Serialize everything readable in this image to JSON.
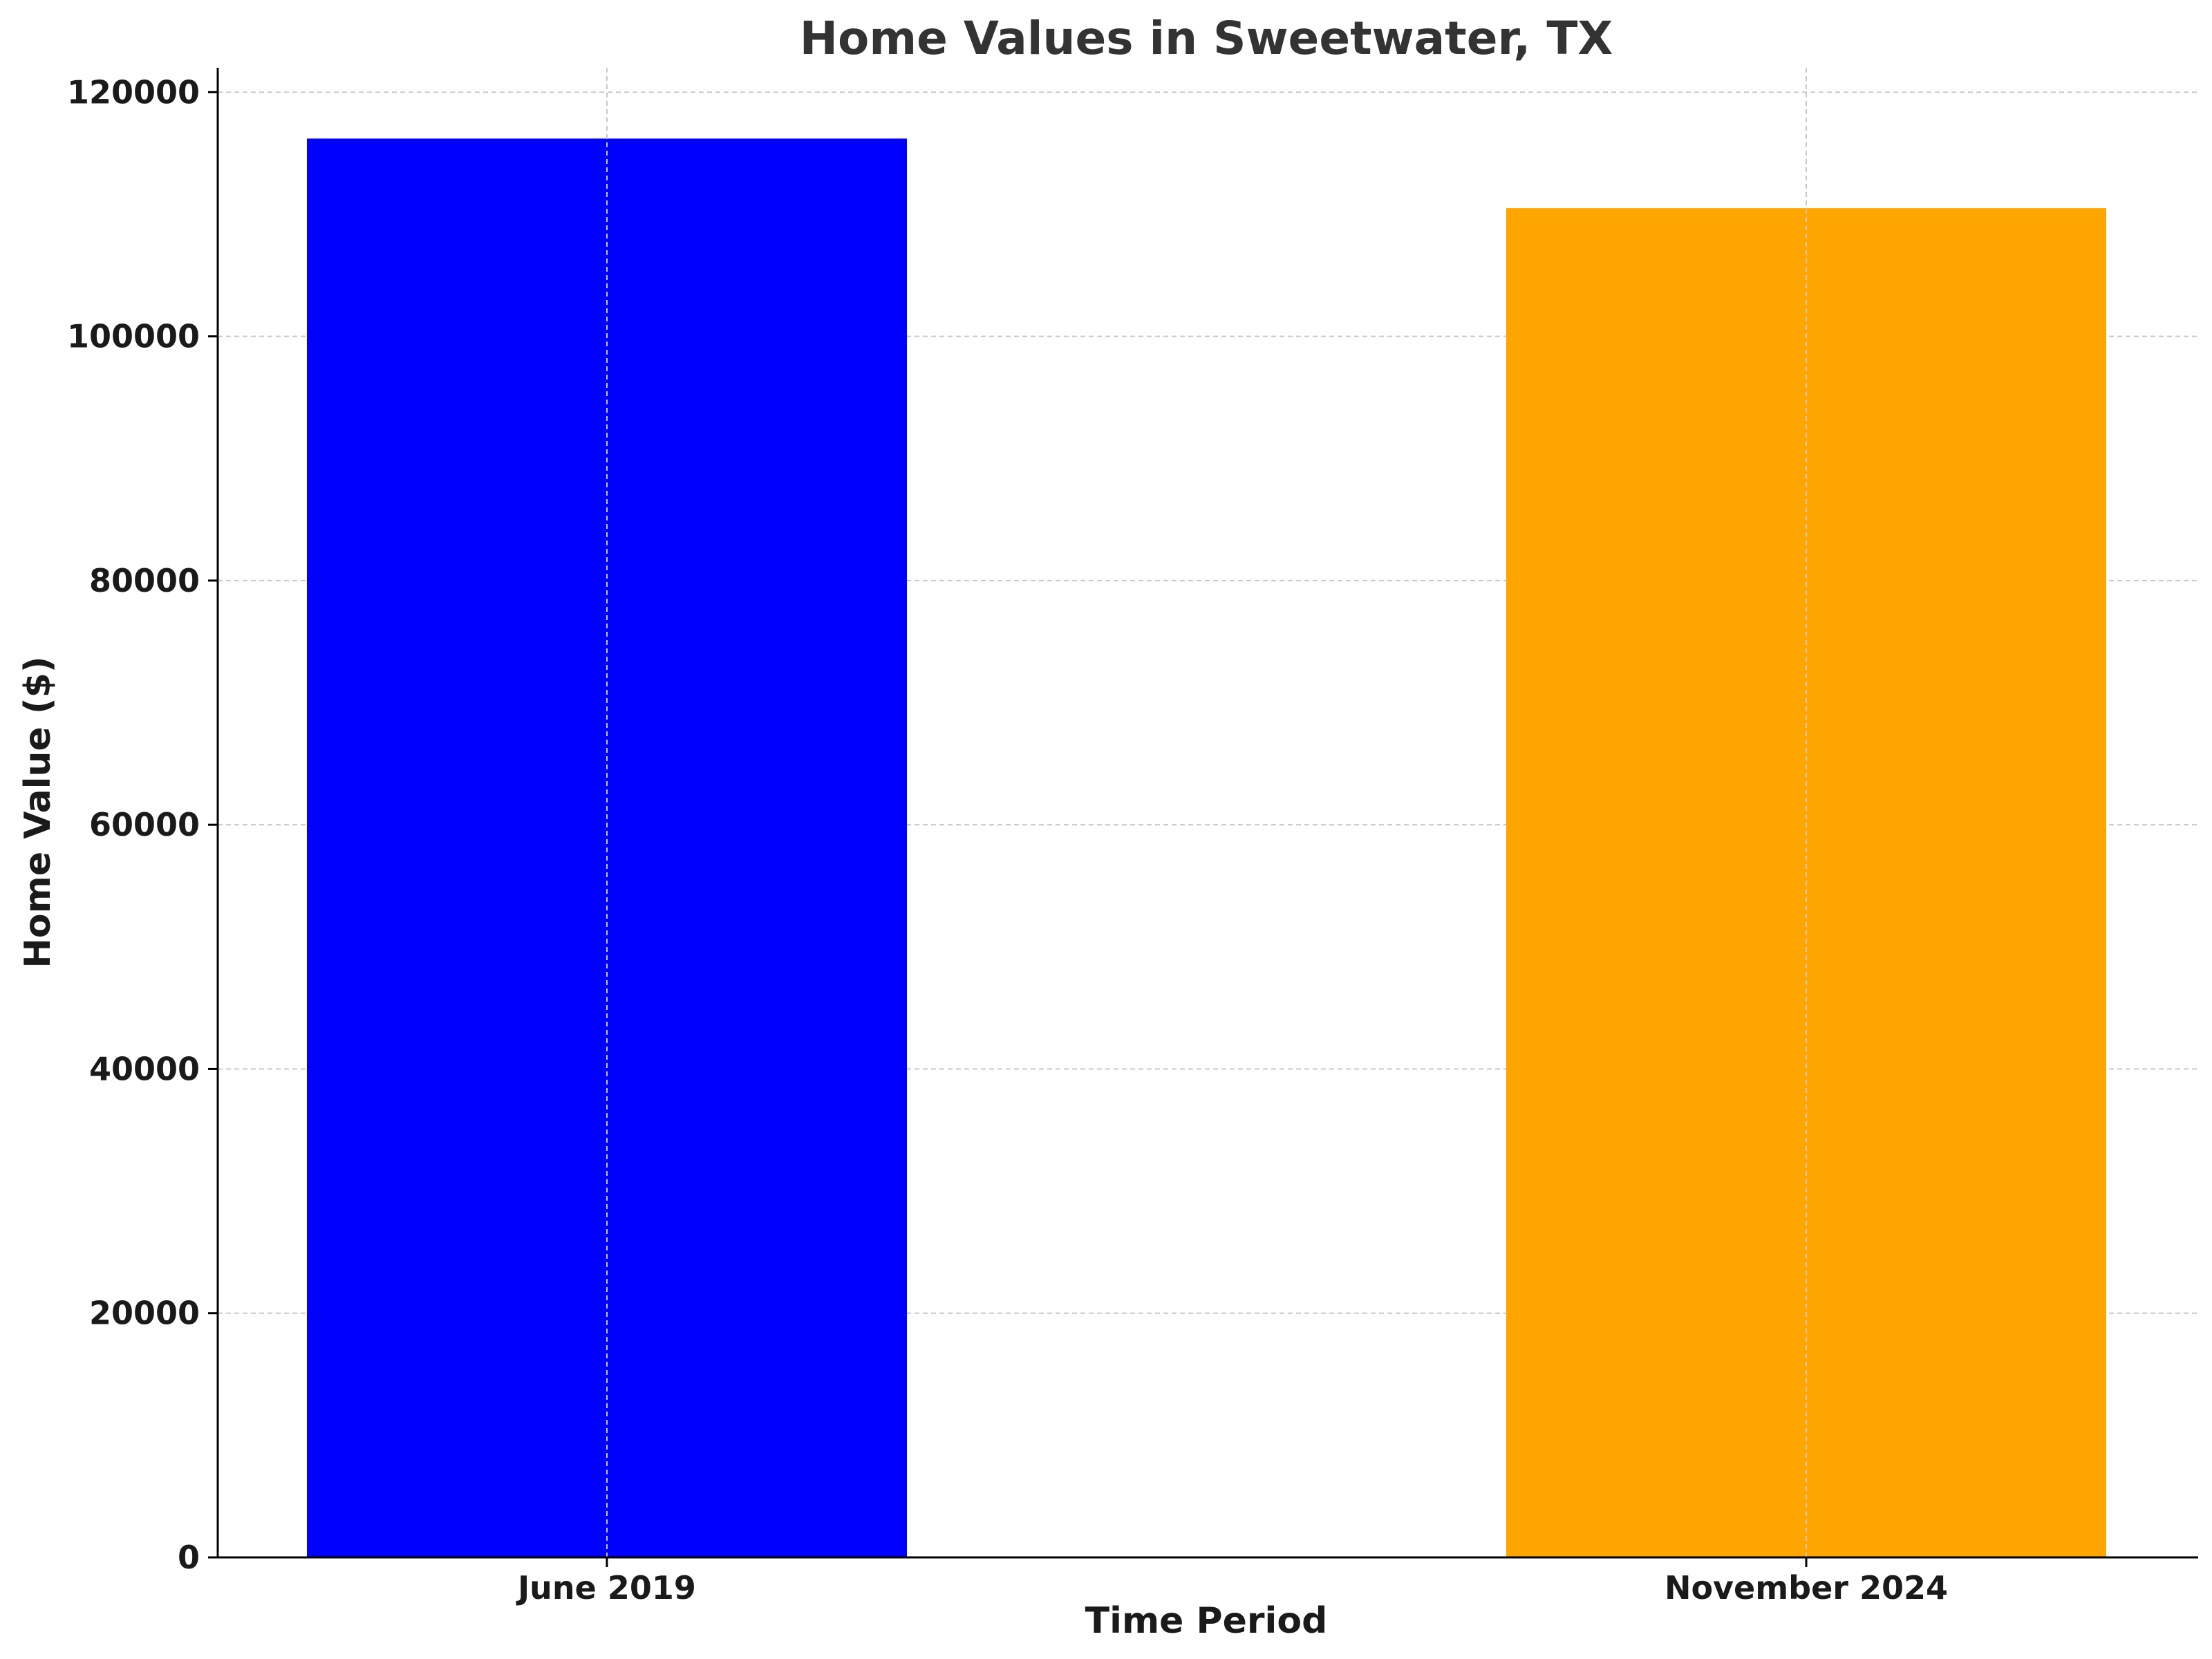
{
  "chart_data": {
    "type": "bar",
    "title": "Home Values in Sweetwater, TX",
    "xlabel": "Time Period",
    "ylabel": "Home Value ($)",
    "categories": [
      "June 2019",
      "November 2024"
    ],
    "values": [
      116200,
      110500
    ],
    "colors": [
      "#0000ff",
      "#ffa500"
    ],
    "ylim": [
      0,
      122000
    ],
    "yticks": [
      0,
      20000,
      40000,
      60000,
      80000,
      100000,
      120000
    ],
    "grid": true
  }
}
